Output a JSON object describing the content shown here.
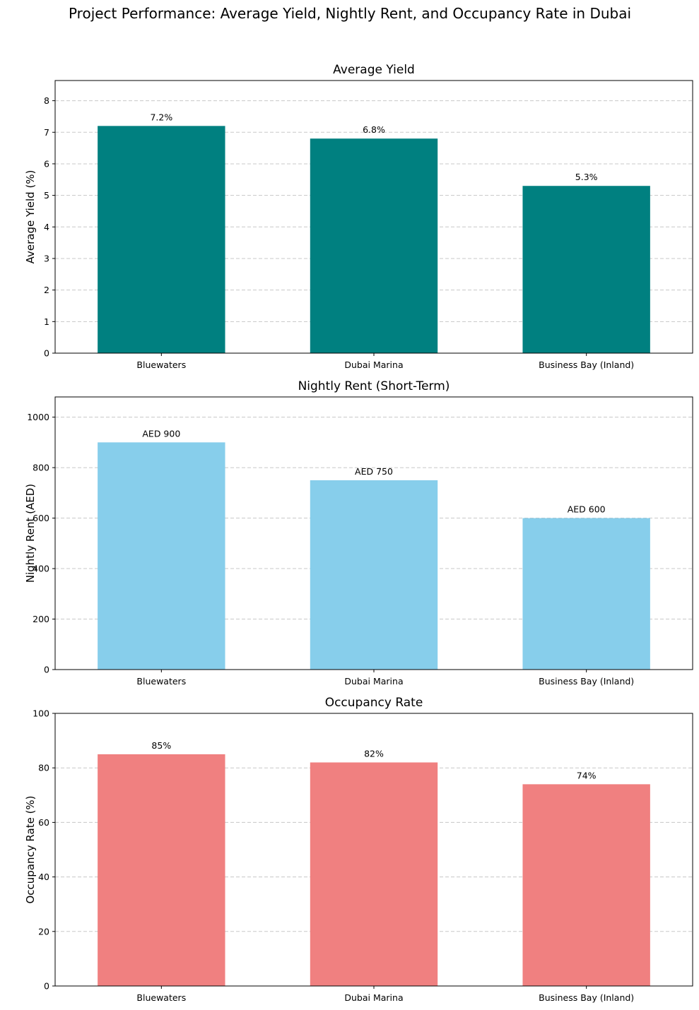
{
  "figure": {
    "suptitle": "Project Performance: Average Yield, Nightly Rent, and Occupancy Rate in Dubai"
  },
  "chart_data": [
    {
      "type": "bar",
      "title": "Average Yield",
      "xlabel": "",
      "ylabel": "Average Yield (%)",
      "categories": [
        "Bluewaters",
        "Dubai Marina",
        "Business Bay (Inland)"
      ],
      "values": [
        7.2,
        6.8,
        5.3
      ],
      "value_labels": [
        "7.2%",
        "6.8%",
        "5.3%"
      ],
      "ylim": [
        0,
        8.64
      ],
      "yticks": [
        0,
        1,
        2,
        3,
        4,
        5,
        6,
        7,
        8
      ],
      "grid": "y-dashed",
      "color": "#008080"
    },
    {
      "type": "bar",
      "title": "Nightly Rent (Short-Term)",
      "xlabel": "",
      "ylabel": "Nightly Rent (AED)",
      "categories": [
        "Bluewaters",
        "Dubai Marina",
        "Business Bay (Inland)"
      ],
      "values": [
        900,
        750,
        600
      ],
      "value_labels": [
        "AED 900",
        "AED 750",
        "AED 600"
      ],
      "ylim": [
        0,
        1080
      ],
      "yticks": [
        0,
        200,
        400,
        600,
        800,
        1000
      ],
      "grid": "y-dashed",
      "color": "#87ceeb"
    },
    {
      "type": "bar",
      "title": "Occupancy Rate",
      "xlabel": "",
      "ylabel": "Occupancy Rate (%)",
      "categories": [
        "Bluewaters",
        "Dubai Marina",
        "Business Bay (Inland)"
      ],
      "values": [
        85,
        82,
        74
      ],
      "value_labels": [
        "85%",
        "82%",
        "74%"
      ],
      "ylim": [
        0,
        100
      ],
      "yticks": [
        0,
        20,
        40,
        60,
        80,
        100
      ],
      "grid": "y-dashed",
      "color": "#f08080"
    }
  ]
}
